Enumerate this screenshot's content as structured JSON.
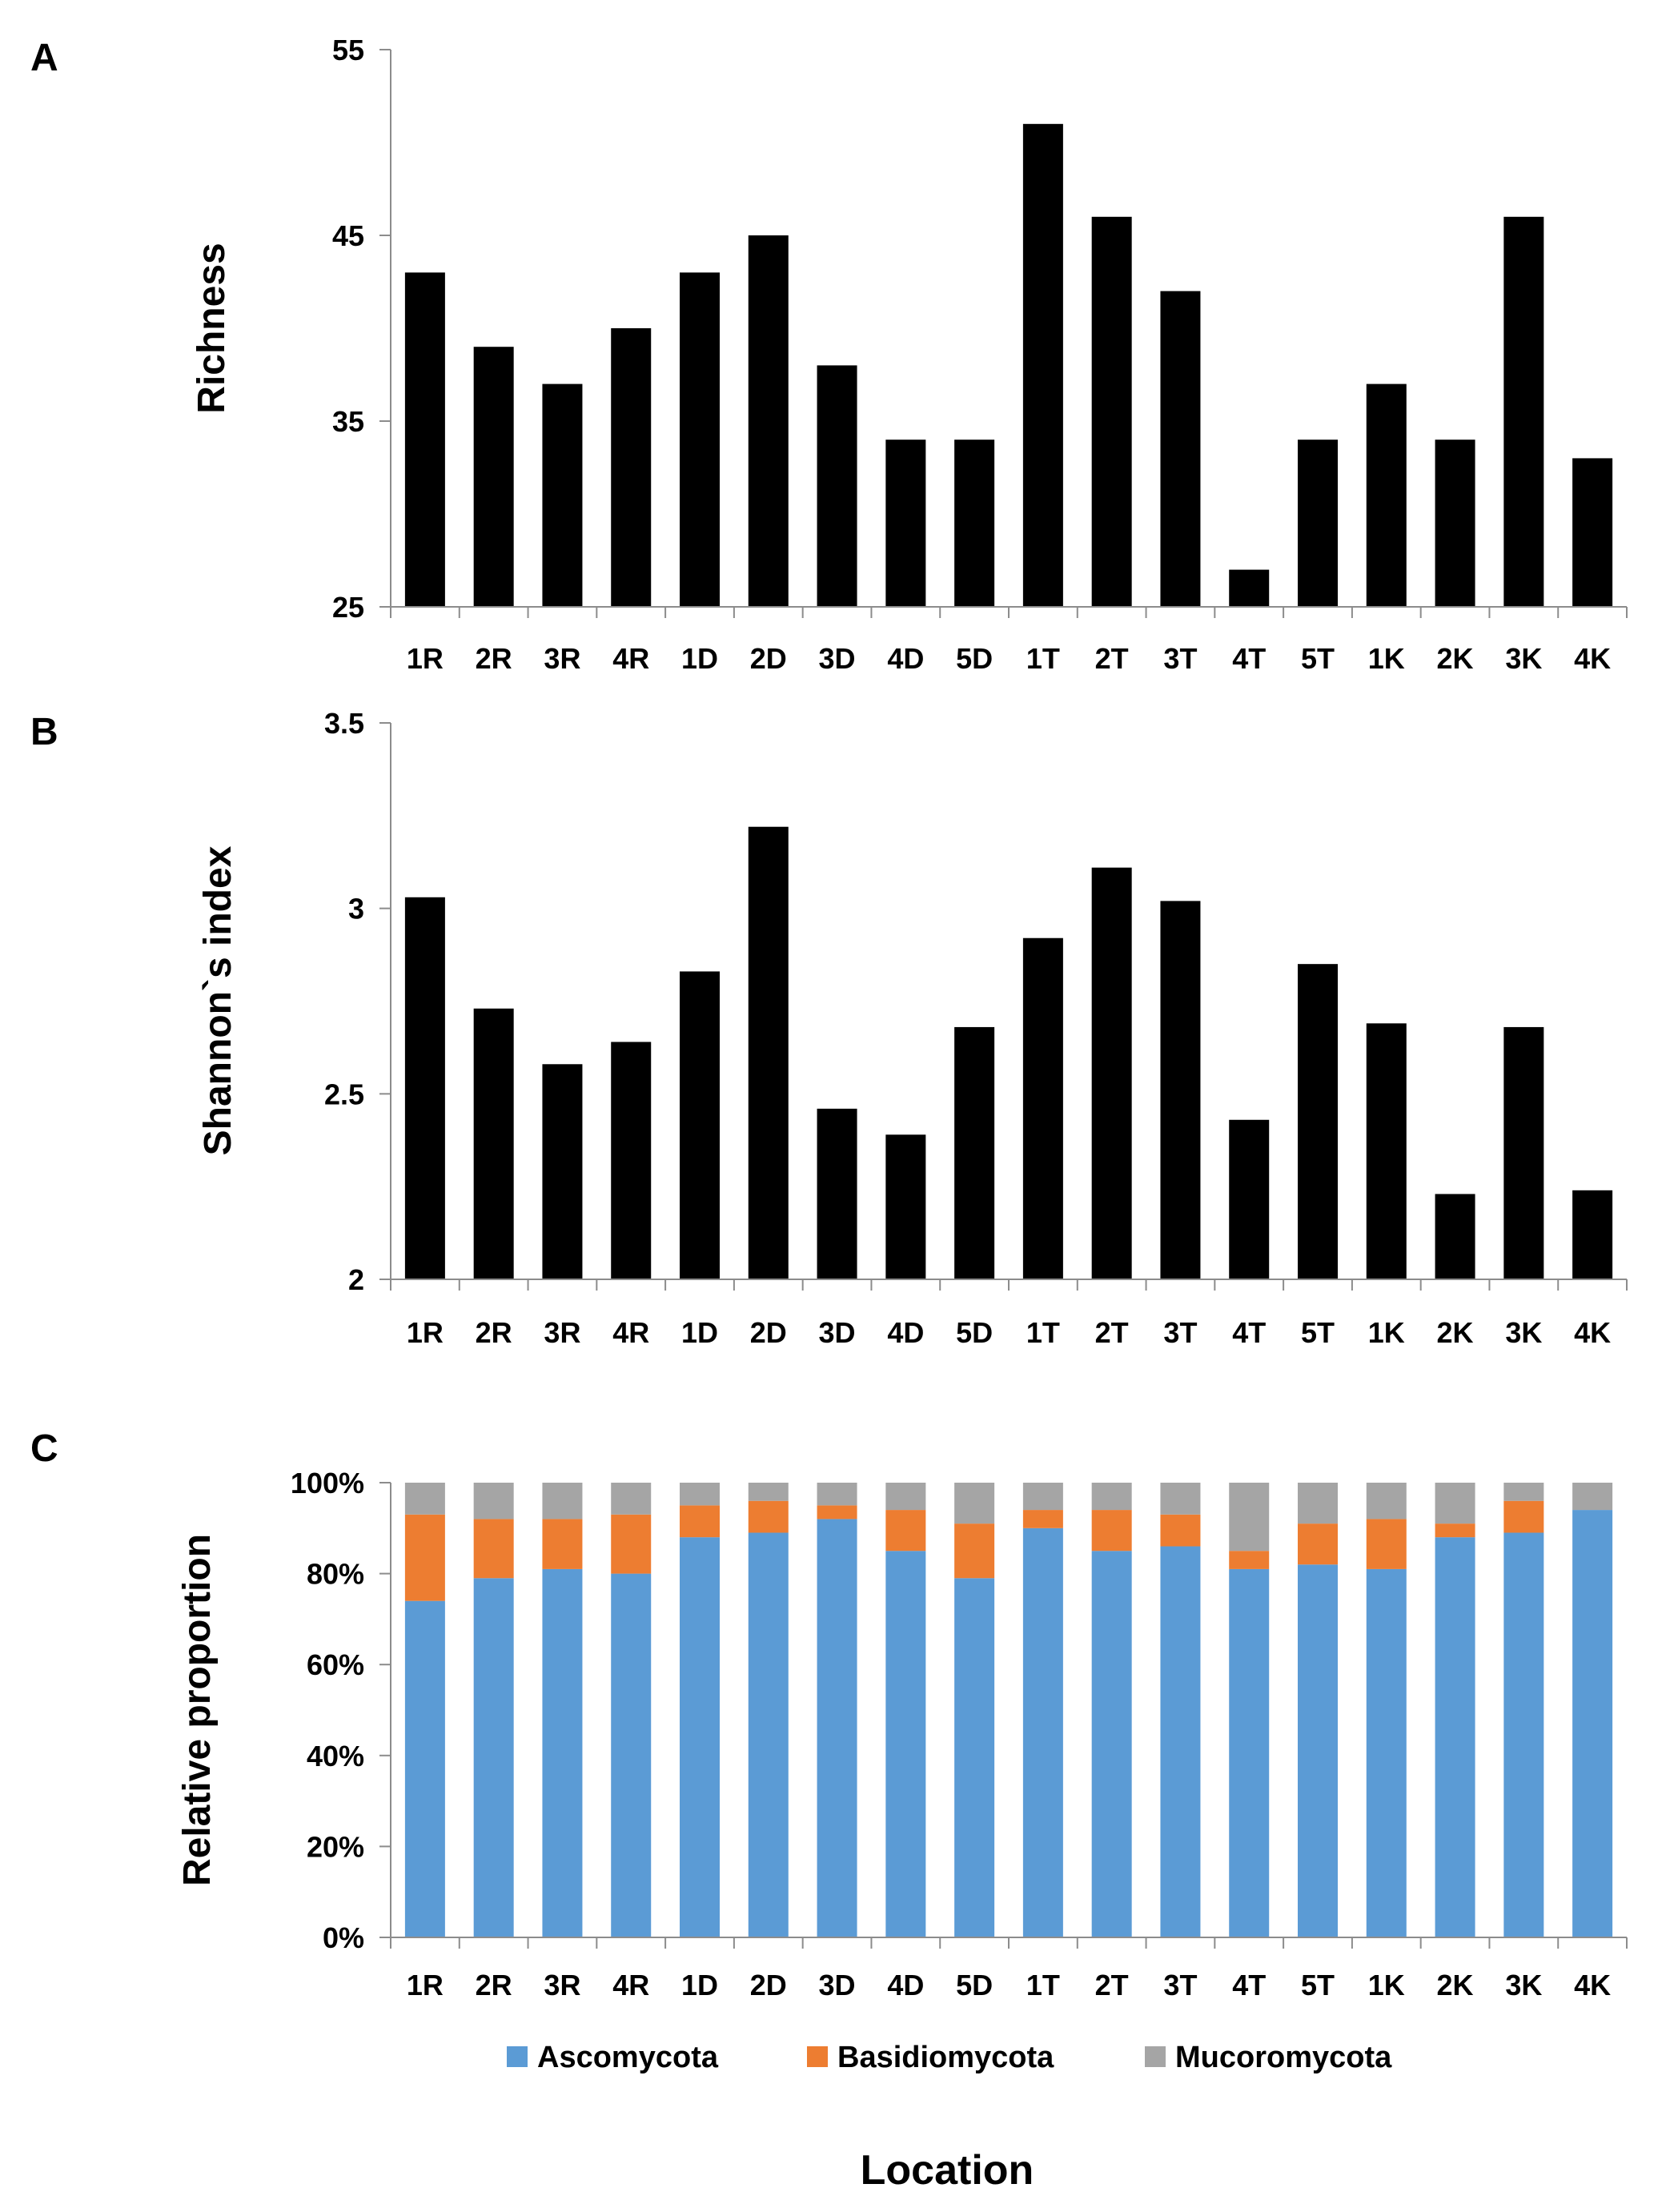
{
  "panels": {
    "a": "A",
    "b": "B",
    "c": "C"
  },
  "x_title": "Location",
  "chart_data": [
    {
      "type": "bar",
      "title": "",
      "ylabel": "Richness",
      "xlabel": "",
      "ylim": [
        25,
        55
      ],
      "yticks": [
        25,
        35,
        45,
        55
      ],
      "ytick_labels": [
        "25",
        "35",
        "45",
        "55"
      ],
      "categories": [
        "1R",
        "2R",
        "3R",
        "4R",
        "1D",
        "2D",
        "3D",
        "4D",
        "5D",
        "1T",
        "2T",
        "3T",
        "4T",
        "5T",
        "1K",
        "2K",
        "3K",
        "4K"
      ],
      "values": [
        43,
        39,
        37,
        40,
        43,
        45,
        38,
        34,
        34,
        51,
        46,
        42,
        27,
        34,
        37,
        34,
        46,
        33
      ],
      "color": "#000000"
    },
    {
      "type": "bar",
      "title": "",
      "ylabel": "Shannon`s index",
      "xlabel": "",
      "ylim": [
        2,
        3.5
      ],
      "yticks": [
        2,
        2.5,
        3,
        3.5
      ],
      "ytick_labels": [
        "2",
        "2.5",
        "3",
        "3.5"
      ],
      "categories": [
        "1R",
        "2R",
        "3R",
        "4R",
        "1D",
        "2D",
        "3D",
        "4D",
        "5D",
        "1T",
        "2T",
        "3T",
        "4T",
        "5T",
        "1K",
        "2K",
        "3K",
        "4K"
      ],
      "values": [
        3.03,
        2.73,
        2.58,
        2.64,
        2.83,
        3.22,
        2.46,
        2.39,
        2.68,
        2.92,
        3.11,
        3.02,
        2.43,
        2.85,
        2.69,
        2.23,
        2.68,
        2.24
      ],
      "color": "#000000"
    },
    {
      "type": "bar",
      "stacked": true,
      "title": "",
      "ylabel": "Relative proportion",
      "xlabel": "Location",
      "ylim": [
        0,
        100
      ],
      "yticks": [
        0,
        20,
        40,
        60,
        80,
        100
      ],
      "ytick_labels": [
        "0%",
        "20%",
        "40%",
        "60%",
        "80%",
        "100%"
      ],
      "legend_position": "bottom",
      "categories": [
        "1R",
        "2R",
        "3R",
        "4R",
        "1D",
        "2D",
        "3D",
        "4D",
        "5D",
        "1T",
        "2T",
        "3T",
        "4T",
        "5T",
        "1K",
        "2K",
        "3K",
        "4K"
      ],
      "series": [
        {
          "name": "Ascomycota",
          "color": "#5B9BD5",
          "values": [
            74,
            79,
            81,
            80,
            88,
            89,
            92,
            85,
            79,
            90,
            85,
            86,
            81,
            82,
            81,
            88,
            89,
            94
          ]
        },
        {
          "name": "Basidiomycota",
          "color": "#ED7D31",
          "values": [
            19,
            13,
            11,
            13,
            7,
            7,
            3,
            9,
            12,
            4,
            9,
            7,
            4,
            9,
            11,
            3,
            7,
            0
          ]
        },
        {
          "name": "Mucoromycota",
          "color": "#A5A5A5",
          "values": [
            7,
            8,
            8,
            7,
            5,
            4,
            5,
            6,
            9,
            6,
            6,
            7,
            15,
            9,
            8,
            9,
            4,
            6
          ]
        }
      ]
    }
  ]
}
